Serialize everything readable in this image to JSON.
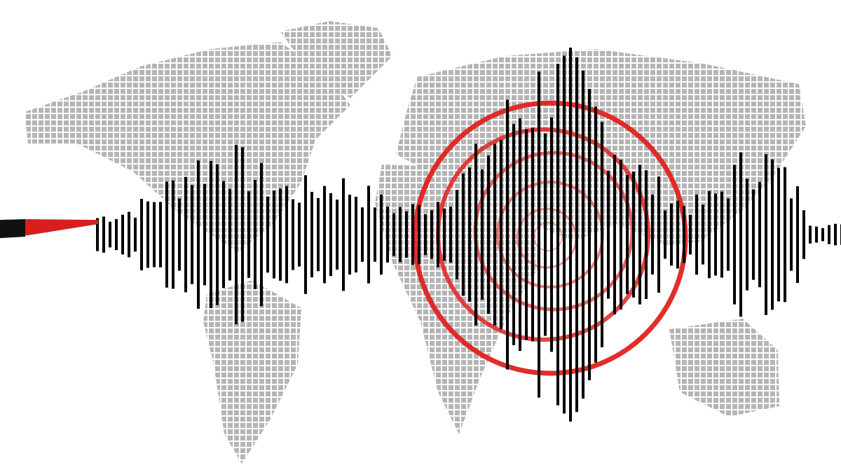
{
  "illustration": {
    "subject": "seismograph",
    "colors": {
      "background": "#ffffff",
      "map_squares": "#b5b5b5",
      "wave_lines": "#000000",
      "epicenter_rings": "#e0221f",
      "needle": "#d81e1e"
    }
  }
}
